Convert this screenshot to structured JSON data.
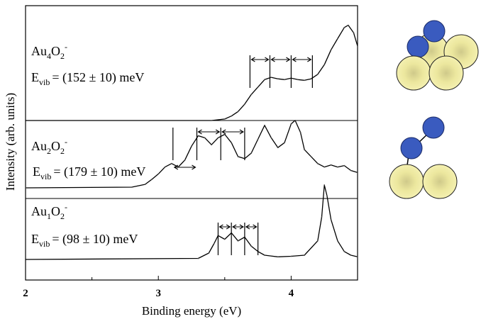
{
  "chart_data": {
    "type": "line",
    "xlabel": "Binding energy (eV)",
    "ylabel": "Intensity (arb. units)",
    "xlim": [
      2,
      4.5
    ],
    "xticks": [
      "2",
      "3",
      "4"
    ],
    "grid": false,
    "series": [
      {
        "name": "Au4O2-",
        "label_main": "Au",
        "label_sub1": "4",
        "label_mid": "O",
        "label_sub2": "2",
        "label_sup": "-",
        "evib_prefix": "E",
        "evib_sub": "vib",
        "evib_value": "= (152 ± 10) meV",
        "baseline": 0,
        "x": [
          2.0,
          3.4,
          3.5,
          3.55,
          3.6,
          3.65,
          3.7,
          3.75,
          3.8,
          3.85,
          3.9,
          3.95,
          4.0,
          4.05,
          4.1,
          4.15,
          4.2,
          4.25,
          4.3,
          4.35,
          4.4,
          4.43,
          4.47,
          4.5
        ],
        "y": [
          0,
          0,
          0.02,
          0.06,
          0.12,
          0.22,
          0.35,
          0.45,
          0.55,
          0.58,
          0.56,
          0.55,
          0.57,
          0.55,
          0.54,
          0.56,
          0.62,
          0.75,
          0.95,
          1.1,
          1.25,
          1.28,
          1.18,
          1.0
        ],
        "vib_marks": [
          3.69,
          3.84,
          4.0,
          4.16
        ]
      },
      {
        "name": "Au2O2-",
        "label_main": "Au",
        "label_sub1": "2",
        "label_mid": "O",
        "label_sub2": "2",
        "label_sup": "-",
        "evib_prefix": "E",
        "evib_sub": "vib",
        "evib_value": "= (179 ± 10) meV",
        "baseline": 0,
        "x": [
          2.0,
          2.8,
          2.9,
          2.95,
          3.0,
          3.05,
          3.1,
          3.15,
          3.2,
          3.25,
          3.3,
          3.35,
          3.4,
          3.45,
          3.5,
          3.55,
          3.6,
          3.65,
          3.7,
          3.75,
          3.8,
          3.85,
          3.9,
          3.95,
          4.0,
          4.03,
          4.07,
          4.1,
          4.15,
          4.2,
          4.25,
          4.3,
          4.35,
          4.4,
          4.45,
          4.5
        ],
        "y": [
          0,
          0.01,
          0.05,
          0.12,
          0.2,
          0.3,
          0.35,
          0.3,
          0.4,
          0.6,
          0.75,
          0.72,
          0.62,
          0.72,
          0.77,
          0.65,
          0.45,
          0.42,
          0.5,
          0.7,
          0.9,
          0.72,
          0.58,
          0.65,
          0.92,
          0.97,
          0.8,
          0.55,
          0.45,
          0.35,
          0.3,
          0.33,
          0.3,
          0.32,
          0.25,
          0.22
        ],
        "vib_marks": [
          3.11,
          3.29,
          3.47,
          3.65
        ]
      },
      {
        "name": "Au1O2-",
        "label_main": "Au",
        "label_sub1": "1",
        "label_mid": "O",
        "label_sub2": "2",
        "label_sup": "-",
        "evib_prefix": "E",
        "evib_sub": "vib",
        "evib_value": "= (98 ± 10) meV",
        "baseline": 0,
        "x": [
          2.0,
          3.3,
          3.38,
          3.42,
          3.45,
          3.5,
          3.55,
          3.6,
          3.65,
          3.7,
          3.75,
          3.8,
          3.9,
          4.0,
          4.1,
          4.2,
          4.23,
          4.25,
          4.27,
          4.3,
          4.35,
          4.4,
          4.45,
          4.5
        ],
        "y": [
          0,
          0.02,
          0.12,
          0.3,
          0.45,
          0.38,
          0.5,
          0.35,
          0.42,
          0.25,
          0.15,
          0.08,
          0.05,
          0.06,
          0.08,
          0.35,
          0.8,
          1.4,
          1.2,
          0.75,
          0.35,
          0.15,
          0.08,
          0.05
        ],
        "vib_marks": [
          3.45,
          3.55,
          3.65,
          3.75
        ]
      }
    ]
  },
  "clusters": {
    "gold_color": "#f0ec9a",
    "oxygen_color": "#3355bb"
  }
}
